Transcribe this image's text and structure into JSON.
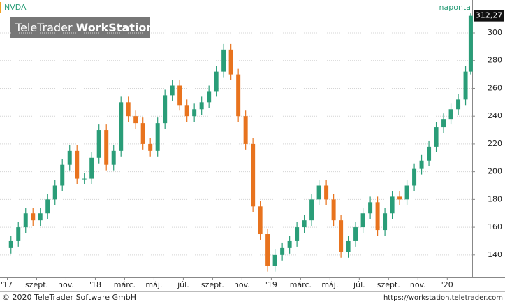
{
  "chart_data": {
    "type": "candlestick",
    "symbol": "NVDA",
    "interval": "naponta",
    "logo": {
      "part1": "TeleTrader",
      "part2": "WorkStation"
    },
    "last_price_label": "312,27",
    "footer_left": "© 2020 TeleTrader Software GmbH",
    "footer_right": "https://workstation.teletrader.com",
    "up_color": "#2a9d78",
    "down_color": "#e8731e",
    "grid": true,
    "xlim": [
      -0.5,
      31.7
    ],
    "ylim": [
      124.3,
      313.6
    ],
    "yticks": [
      140,
      160,
      180,
      200,
      220,
      240,
      260,
      280,
      300
    ],
    "xticks": [
      {
        "value": 0,
        "label": "'17"
      },
      {
        "value": 2,
        "label": "szept."
      },
      {
        "value": 4,
        "label": "nov."
      },
      {
        "value": 6,
        "label": "'18"
      },
      {
        "value": 8,
        "label": "márc."
      },
      {
        "value": 10,
        "label": "máj."
      },
      {
        "value": 12,
        "label": "júl."
      },
      {
        "value": 14,
        "label": "szept."
      },
      {
        "value": 16,
        "label": "nov."
      },
      {
        "value": 18,
        "label": "'19"
      },
      {
        "value": 20,
        "label": "márc."
      },
      {
        "value": 22,
        "label": "máj."
      },
      {
        "value": 24,
        "label": "júl."
      },
      {
        "value": 26,
        "label": "szept."
      },
      {
        "value": 28,
        "label": "nov."
      },
      {
        "value": 30,
        "label": "'20"
      }
    ],
    "x": [
      0.25,
      0.75,
      1.25,
      1.75,
      2.25,
      2.75,
      3.25,
      3.75,
      4.25,
      4.75,
      5.25,
      5.75,
      6.25,
      6.75,
      7.25,
      7.75,
      8.25,
      8.75,
      9.25,
      9.75,
      10.25,
      10.75,
      11.25,
      11.75,
      12.25,
      12.75,
      13.25,
      13.75,
      14.25,
      14.75,
      15.25,
      15.75,
      16.25,
      16.75,
      17.25,
      17.75,
      18.25,
      18.75,
      19.25,
      19.75,
      20.25,
      20.75,
      21.25,
      21.75,
      22.25,
      22.75,
      23.25,
      23.75,
      24.25,
      24.75,
      25.25,
      25.75,
      26.25,
      26.75,
      27.25,
      27.75,
      28.25,
      28.75,
      29.25,
      29.75,
      30.25,
      30.75,
      31.25,
      31.6
    ],
    "open": [
      145,
      150,
      160,
      170,
      165,
      170,
      180,
      190,
      205,
      215,
      195,
      195,
      210,
      230,
      205,
      215,
      250,
      240,
      235,
      220,
      215,
      235,
      255,
      262,
      248,
      240,
      245,
      250,
      258,
      272,
      288,
      270,
      240,
      220,
      175,
      155,
      132,
      140,
      145,
      150,
      160,
      165,
      180,
      190,
      180,
      165,
      142,
      150,
      160,
      170,
      178,
      158,
      170,
      182,
      180,
      190,
      202,
      208,
      218,
      232,
      238,
      245,
      252,
      272
    ],
    "high": [
      154,
      164,
      174,
      174,
      174,
      184,
      194,
      209,
      219,
      219,
      199,
      214,
      234,
      234,
      219,
      254,
      254,
      244,
      239,
      224,
      239,
      259,
      266,
      266,
      252,
      249,
      254,
      262,
      276,
      292,
      292,
      274,
      244,
      224,
      179,
      159,
      144,
      149,
      154,
      164,
      169,
      184,
      194,
      194,
      184,
      169,
      154,
      164,
      174,
      182,
      182,
      174,
      186,
      186,
      194,
      206,
      212,
      222,
      236,
      242,
      249,
      256,
      276,
      314
    ],
    "low": [
      141,
      146,
      156,
      161,
      161,
      166,
      176,
      186,
      201,
      191,
      191,
      191,
      206,
      201,
      201,
      211,
      236,
      231,
      216,
      211,
      211,
      231,
      251,
      244,
      236,
      236,
      241,
      246,
      254,
      268,
      266,
      236,
      216,
      171,
      151,
      128,
      128,
      136,
      141,
      146,
      156,
      161,
      176,
      176,
      161,
      138,
      138,
      146,
      156,
      166,
      154,
      154,
      166,
      176,
      176,
      186,
      198,
      204,
      214,
      228,
      234,
      241,
      248,
      270
    ],
    "close": [
      150,
      160,
      170,
      165,
      170,
      180,
      190,
      205,
      215,
      195,
      195,
      210,
      230,
      205,
      215,
      250,
      240,
      235,
      220,
      215,
      235,
      255,
      262,
      248,
      240,
      245,
      250,
      258,
      272,
      288,
      270,
      240,
      220,
      175,
      155,
      132,
      140,
      145,
      150,
      160,
      165,
      180,
      190,
      180,
      165,
      142,
      150,
      160,
      170,
      178,
      158,
      170,
      182,
      180,
      190,
      202,
      208,
      218,
      232,
      238,
      245,
      252,
      272,
      312.27
    ]
  }
}
